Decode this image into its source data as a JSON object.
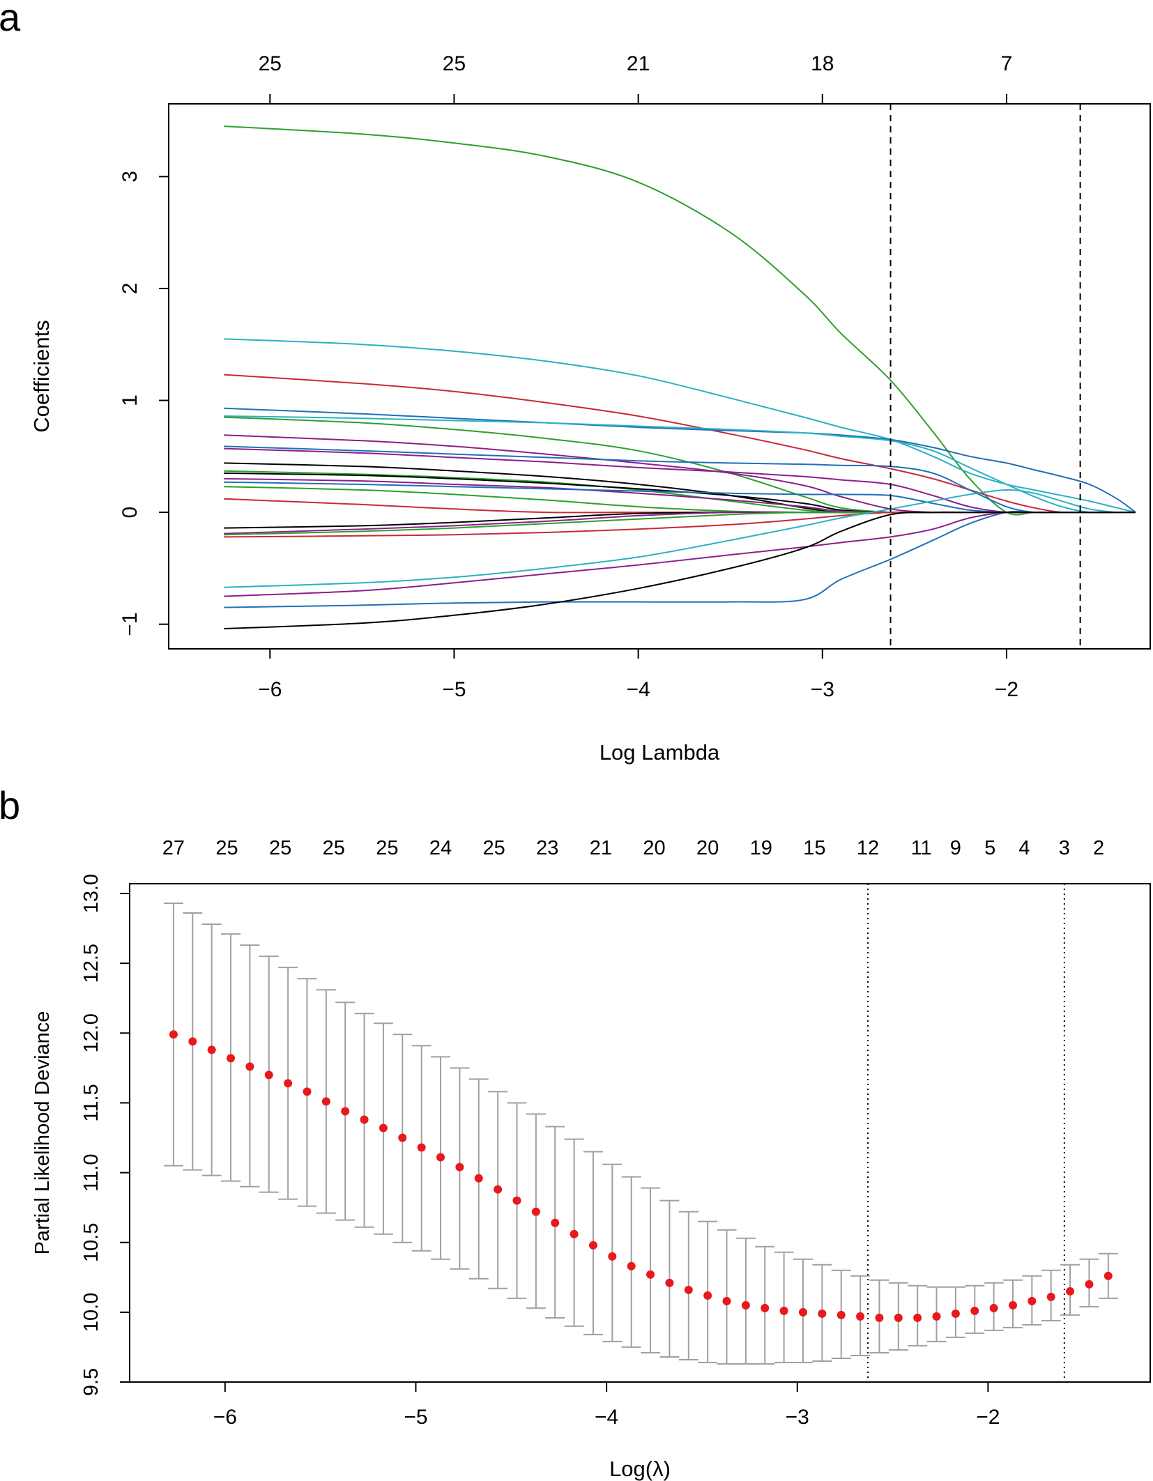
{
  "panels": {
    "a": "a",
    "b": "b"
  },
  "colors": {
    "green": "#2ca02c",
    "cyan": "#2bb0c4",
    "red": "#c8283c",
    "blue": "#1f6fb8",
    "purple": "#8b1f8b",
    "black": "#000000",
    "point": "#e8191c",
    "errorbar": "#a0a0a0"
  },
  "chart_data": [
    {
      "type": "line",
      "title": "",
      "xlabel": "Log Lambda",
      "ylabel": "Coefficients",
      "xlim": [
        -6.55,
        -1.22
      ],
      "ylim": [
        -1.22,
        3.65
      ],
      "x_ticks": [
        -6,
        -5,
        -4,
        -3,
        -2
      ],
      "x_tick_labels": [
        "-6",
        "-5",
        "-4",
        "-3",
        "-2"
      ],
      "y_ticks": [
        -1,
        0,
        1,
        2,
        3
      ],
      "y_tick_labels": [
        "-1",
        "0",
        "1",
        "2",
        "3"
      ],
      "top_ticks": [
        -6,
        -5,
        -4,
        -3,
        -2
      ],
      "top_tick_labels": [
        "25",
        "25",
        "21",
        "18",
        "7"
      ],
      "vlines": [
        -2.63,
        -1.6
      ],
      "vline_style": "dashed",
      "x": [
        -6.25,
        -5.5,
        -5.0,
        -4.5,
        -4.0,
        -3.5,
        -3.1,
        -2.9,
        -2.63,
        -2.4,
        -2.2,
        -2.0,
        -1.85,
        -1.7,
        -1.55,
        -1.4,
        -1.3
      ],
      "series": [
        {
          "name": "path-1",
          "color": "green",
          "values": [
            3.45,
            3.38,
            3.3,
            3.18,
            2.95,
            2.5,
            1.95,
            1.6,
            1.18,
            0.72,
            0.3,
            0,
            0,
            0,
            0,
            0,
            0
          ]
        },
        {
          "name": "path-2",
          "color": "cyan",
          "values": [
            1.55,
            1.5,
            1.44,
            1.35,
            1.22,
            1.02,
            0.85,
            0.76,
            0.65,
            0.5,
            0.35,
            0.25,
            0.2,
            0.15,
            0.1,
            0.04,
            0
          ]
        },
        {
          "name": "path-3",
          "color": "red",
          "values": [
            1.23,
            1.15,
            1.08,
            0.98,
            0.86,
            0.7,
            0.56,
            0.48,
            0.39,
            0.3,
            0.2,
            0.1,
            0.04,
            0,
            0,
            0,
            0
          ]
        },
        {
          "name": "path-4",
          "color": "blue",
          "values": [
            0.93,
            0.88,
            0.84,
            0.8,
            0.76,
            0.73,
            0.71,
            0.69,
            0.65,
            0.58,
            0.5,
            0.44,
            0.38,
            0.32,
            0.25,
            0.12,
            0
          ]
        },
        {
          "name": "path-5",
          "color": "cyan",
          "values": [
            0.86,
            0.84,
            0.82,
            0.8,
            0.77,
            0.74,
            0.71,
            0.68,
            0.64,
            0.55,
            0.4,
            0.25,
            0.14,
            0.05,
            0,
            0,
            0
          ]
        },
        {
          "name": "path-6",
          "color": "green",
          "values": [
            0.85,
            0.8,
            0.74,
            0.66,
            0.55,
            0.35,
            0.14,
            0.04,
            0,
            0,
            0,
            0,
            0,
            0,
            0,
            0,
            0
          ]
        },
        {
          "name": "path-7",
          "color": "purple",
          "values": [
            0.69,
            0.64,
            0.59,
            0.52,
            0.44,
            0.35,
            0.24,
            0.14,
            0.03,
            0,
            0,
            0,
            0,
            0,
            0,
            0,
            0
          ]
        },
        {
          "name": "path-8",
          "color": "blue",
          "values": [
            0.59,
            0.55,
            0.52,
            0.49,
            0.46,
            0.44,
            0.43,
            0.42,
            0.41,
            0.35,
            0.2,
            0.05,
            0,
            0,
            0,
            0,
            0
          ]
        },
        {
          "name": "path-9",
          "color": "purple",
          "values": [
            0.57,
            0.53,
            0.49,
            0.45,
            0.4,
            0.36,
            0.32,
            0.29,
            0.25,
            0.15,
            0.05,
            0,
            0,
            0,
            0,
            0,
            0
          ]
        },
        {
          "name": "path-10",
          "color": "black",
          "values": [
            0.44,
            0.41,
            0.37,
            0.32,
            0.25,
            0.15,
            0.04,
            0,
            0,
            0,
            0,
            0,
            0,
            0,
            0,
            0,
            0
          ]
        },
        {
          "name": "path-11",
          "color": "green",
          "values": [
            0.37,
            0.34,
            0.31,
            0.27,
            0.2,
            0.1,
            0.02,
            0,
            0,
            0,
            0,
            0,
            0,
            0,
            0,
            0,
            0
          ]
        },
        {
          "name": "path-12",
          "color": "black",
          "values": [
            0.35,
            0.33,
            0.3,
            0.26,
            0.21,
            0.15,
            0.08,
            0.02,
            0,
            0,
            0,
            0,
            0,
            0,
            0,
            0,
            0
          ]
        },
        {
          "name": "path-13",
          "color": "purple",
          "values": [
            0.3,
            0.28,
            0.25,
            0.22,
            0.17,
            0.11,
            0.05,
            0.01,
            0,
            0,
            0,
            0,
            0,
            0,
            0,
            0,
            0
          ]
        },
        {
          "name": "path-14",
          "color": "blue",
          "values": [
            0.27,
            0.25,
            0.23,
            0.21,
            0.19,
            0.17,
            0.16,
            0.16,
            0.15,
            0.08,
            0.02,
            0,
            0,
            0,
            0,
            0,
            0
          ]
        },
        {
          "name": "path-15",
          "color": "green",
          "values": [
            0.23,
            0.2,
            0.16,
            0.11,
            0.05,
            0.01,
            0,
            0,
            0,
            0,
            0,
            0,
            0,
            0,
            0,
            0,
            0
          ]
        },
        {
          "name": "path-16",
          "color": "red",
          "values": [
            0.12,
            0.07,
            0.03,
            0,
            0,
            0,
            0,
            0,
            0,
            0,
            0,
            0,
            0,
            0,
            0,
            0,
            0
          ]
        },
        {
          "name": "path-17",
          "color": "black",
          "values": [
            -0.14,
            -0.12,
            -0.09,
            -0.05,
            -0.01,
            0,
            0,
            0,
            0,
            0,
            0,
            0,
            0,
            0,
            0,
            0,
            0
          ]
        },
        {
          "name": "path-18",
          "color": "purple",
          "values": [
            -0.19,
            -0.15,
            -0.12,
            -0.08,
            -0.03,
            0,
            0,
            0,
            0,
            0,
            0,
            0,
            0,
            0,
            0,
            0,
            0
          ]
        },
        {
          "name": "path-19",
          "color": "green",
          "values": [
            -0.2,
            -0.17,
            -0.14,
            -0.1,
            -0.06,
            -0.02,
            0,
            0,
            0,
            0,
            0,
            0,
            0,
            0,
            0,
            0,
            0
          ]
        },
        {
          "name": "path-20",
          "color": "red",
          "values": [
            -0.22,
            -0.21,
            -0.2,
            -0.18,
            -0.15,
            -0.11,
            -0.06,
            -0.03,
            0,
            0,
            0,
            0,
            0,
            0,
            0,
            0,
            0
          ]
        },
        {
          "name": "path-21",
          "color": "blue",
          "values": [
            -0.85,
            -0.83,
            -0.81,
            -0.8,
            -0.8,
            -0.8,
            -0.78,
            -0.6,
            -0.42,
            -0.25,
            -0.1,
            0,
            0,
            0,
            0,
            0,
            0
          ]
        },
        {
          "name": "path-22",
          "color": "cyan",
          "values": [
            -0.67,
            -0.63,
            -0.58,
            -0.5,
            -0.4,
            -0.25,
            -0.12,
            -0.05,
            0.03,
            0.1,
            0.16,
            0.2,
            0.17,
            0.1,
            0.03,
            0,
            0
          ]
        },
        {
          "name": "path-23",
          "color": "purple",
          "values": [
            -0.75,
            -0.7,
            -0.63,
            -0.55,
            -0.47,
            -0.38,
            -0.31,
            -0.27,
            -0.22,
            -0.15,
            -0.05,
            0,
            0,
            0,
            0,
            0,
            0
          ]
        },
        {
          "name": "path-24",
          "color": "black",
          "values": [
            -1.04,
            -0.99,
            -0.92,
            -0.82,
            -0.68,
            -0.5,
            -0.32,
            -0.17,
            -0.02,
            0,
            0,
            0,
            0,
            0,
            0,
            0,
            0
          ]
        }
      ]
    },
    {
      "type": "scatter",
      "title": "",
      "xlabel": "Log(λ)",
      "ylabel": "Partial Likelihood Deviance",
      "xlim": [
        -6.5,
        -1.15
      ],
      "ylim": [
        9.5,
        13.07
      ],
      "x_ticks": [
        -6,
        -5,
        -4,
        -3,
        -2
      ],
      "x_tick_labels": [
        "-6",
        "-5",
        "-4",
        "-3",
        "-2"
      ],
      "y_ticks": [
        9.5,
        10.0,
        10.5,
        11.0,
        11.5,
        12.0,
        12.5,
        13.0
      ],
      "y_tick_labels": [
        "9.5",
        "10.0",
        "10.5",
        "11.0",
        "11.5",
        "12.0",
        "12.5",
        "13.0"
      ],
      "top_tick_x": [
        -6.27,
        -5.99,
        -5.71,
        -5.43,
        -5.15,
        -4.87,
        -4.59,
        -4.31,
        -4.03,
        -3.75,
        -3.47,
        -3.19,
        -2.91,
        -2.63,
        -2.35,
        -2.17,
        -1.99,
        -1.81,
        -1.6,
        -1.42
      ],
      "top_tick_labels": [
        "27",
        "25",
        "25",
        "25",
        "25",
        "24",
        "25",
        "23",
        "21",
        "20",
        "20",
        "19",
        "15",
        "12",
        "11",
        "9",
        "5",
        "4",
        "3",
        "2"
      ],
      "vlines": [
        -2.63,
        -1.6
      ],
      "vline_style": "dotted",
      "x": [
        -6.27,
        -6.17,
        -6.07,
        -5.97,
        -5.87,
        -5.77,
        -5.67,
        -5.57,
        -5.47,
        -5.37,
        -5.27,
        -5.17,
        -5.07,
        -4.97,
        -4.87,
        -4.77,
        -4.67,
        -4.57,
        -4.47,
        -4.37,
        -4.27,
        -4.17,
        -4.07,
        -3.97,
        -3.87,
        -3.77,
        -3.67,
        -3.57,
        -3.47,
        -3.37,
        -3.27,
        -3.17,
        -3.07,
        -2.97,
        -2.87,
        -2.77,
        -2.67,
        -2.57,
        -2.47,
        -2.37,
        -2.27,
        -2.17,
        -2.07,
        -1.97,
        -1.87,
        -1.77,
        -1.67,
        -1.57,
        -1.47,
        -1.37
      ],
      "values": [
        11.99,
        11.94,
        11.88,
        11.82,
        11.76,
        11.7,
        11.64,
        11.58,
        11.51,
        11.44,
        11.38,
        11.32,
        11.25,
        11.18,
        11.11,
        11.04,
        10.96,
        10.88,
        10.8,
        10.72,
        10.64,
        10.56,
        10.48,
        10.4,
        10.33,
        10.27,
        10.21,
        10.16,
        10.12,
        10.08,
        10.05,
        10.03,
        10.01,
        10.0,
        9.99,
        9.98,
        9.97,
        9.96,
        9.96,
        9.96,
        9.97,
        9.99,
        10.01,
        10.03,
        10.05,
        10.08,
        10.11,
        10.15,
        10.2,
        10.26
      ],
      "lower": [
        11.05,
        11.02,
        10.98,
        10.94,
        10.9,
        10.86,
        10.81,
        10.76,
        10.71,
        10.66,
        10.61,
        10.56,
        10.5,
        10.44,
        10.38,
        10.31,
        10.24,
        10.17,
        10.1,
        10.03,
        9.96,
        9.9,
        9.84,
        9.79,
        9.75,
        9.71,
        9.68,
        9.66,
        9.64,
        9.63,
        9.63,
        9.63,
        9.64,
        9.64,
        9.65,
        9.67,
        9.69,
        9.71,
        9.73,
        9.76,
        9.79,
        9.82,
        9.85,
        9.87,
        9.89,
        9.91,
        9.94,
        9.98,
        10.04,
        10.1
      ],
      "upper": [
        12.93,
        12.86,
        12.78,
        12.71,
        12.63,
        12.55,
        12.47,
        12.39,
        12.31,
        12.22,
        12.14,
        12.07,
        11.99,
        11.91,
        11.83,
        11.75,
        11.67,
        11.58,
        11.5,
        11.42,
        11.33,
        11.24,
        11.15,
        11.06,
        10.97,
        10.89,
        10.8,
        10.72,
        10.65,
        10.59,
        10.53,
        10.47,
        10.43,
        10.38,
        10.34,
        10.3,
        10.26,
        10.23,
        10.21,
        10.19,
        10.18,
        10.18,
        10.19,
        10.21,
        10.23,
        10.26,
        10.3,
        10.34,
        10.38,
        10.42
      ]
    }
  ]
}
